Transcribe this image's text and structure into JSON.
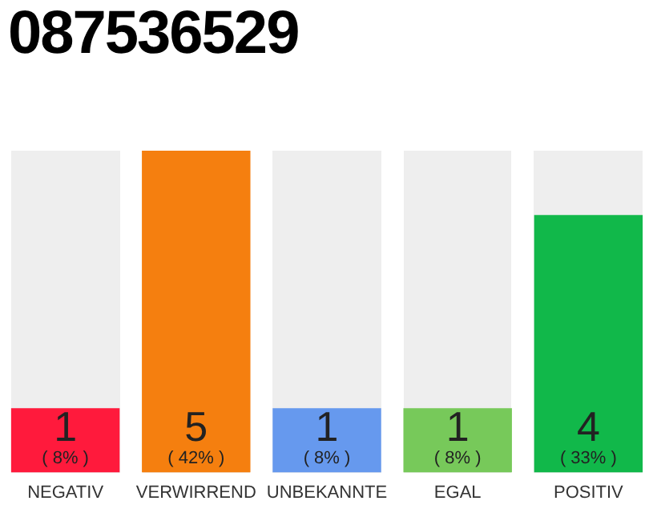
{
  "chart_data": {
    "type": "bar",
    "title": "087536529",
    "categories": [
      "NEGATIV",
      "VERWIRREND",
      "UNBEKANNTE",
      "EGAL",
      "POSITIV"
    ],
    "values": [
      1,
      5,
      1,
      1,
      4
    ],
    "colors": [
      "#ff1a3c",
      "#f57f0f",
      "#6699ee",
      "#77c95a",
      "#11b84a"
    ],
    "ylim": [
      0,
      5
    ],
    "data_labels": true,
    "tick_labels": "x",
    "grid": false,
    "legend": false,
    "annotations": [
      "( 8% )",
      "( 42% )",
      "( 8% )",
      "( 8% )",
      "( 33% )"
    ]
  }
}
